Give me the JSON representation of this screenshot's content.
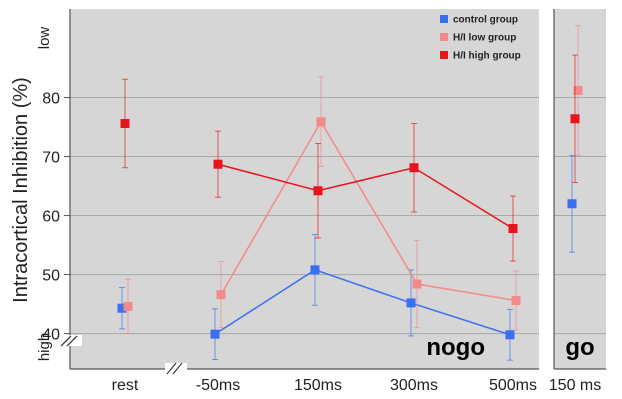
{
  "chart_data": {
    "type": "line",
    "ylabel": "Intracortical Inhibition (%)",
    "y_top_label": "low",
    "y_bottom_label": "high",
    "ylim": [
      34,
      95
    ],
    "yticks": [
      40,
      50,
      60,
      70,
      80
    ],
    "grid": true,
    "legend_placement": "top-right",
    "panels": [
      {
        "label": "nogo",
        "categories": [
          "rest",
          "-50ms",
          "150ms",
          "300ms",
          "500ms"
        ],
        "connected_from_index": 1
      },
      {
        "label": "go",
        "categories": [
          "150 ms"
        ],
        "connected_from_index": null
      }
    ],
    "series": [
      {
        "name": "control group",
        "color": "#3a6ff0",
        "values": [
          44.3,
          39.9,
          50.8,
          45.2,
          39.8,
          62.0
        ],
        "error": [
          3.5,
          4.3,
          6.0,
          5.6,
          4.3,
          8.2
        ]
      },
      {
        "name": "H/I low group",
        "color": "#f28a8a",
        "values": [
          44.6,
          46.6,
          75.9,
          48.4,
          45.6,
          81.2
        ],
        "error": [
          4.6,
          5.6,
          7.6,
          7.4,
          5.0,
          11.0
        ]
      },
      {
        "name": "H/I high group",
        "color": "#e8141c",
        "values": [
          75.6,
          68.7,
          64.2,
          68.1,
          57.8,
          76.4
        ],
        "error": [
          7.5,
          5.6,
          8.0,
          7.5,
          5.5,
          10.8
        ]
      }
    ]
  }
}
